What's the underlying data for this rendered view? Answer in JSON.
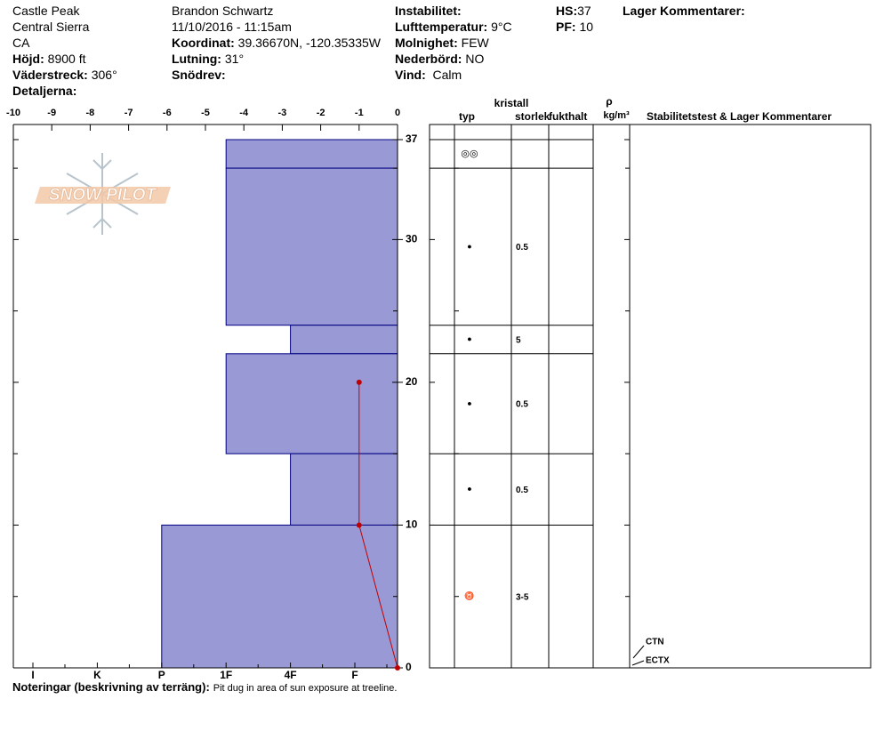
{
  "header": {
    "location": [
      "Castle Peak",
      "Central Sierra",
      "CA"
    ],
    "elevation": {
      "label": "Höjd:",
      "value": "8900 ft"
    },
    "aspect": {
      "label": "Väderstreck:",
      "value": "306°"
    },
    "details": {
      "label": "Detaljerna:"
    },
    "observer": "Brandon Schwartz",
    "datetime": "11/10/2016 - 11:15am",
    "coordinates": {
      "label": "Koordinat:",
      "value": "39.36670N, -120.35335W"
    },
    "slope": {
      "label": "Lutning:",
      "value": "31°"
    },
    "blowing_snow": {
      "label": "Snödrev:"
    },
    "instability": {
      "label": "Instabilitet:"
    },
    "air_temperature": {
      "label": "Lufttemperatur:",
      "value": "9°C"
    },
    "sky": {
      "label": "Molnighet:",
      "value": "FEW"
    },
    "precipitation": {
      "label": "Nederbörd:",
      "value": "NO"
    },
    "wind": {
      "label": "Vind:",
      "value": "Calm"
    },
    "hs": {
      "label": "HS:",
      "value": 37
    },
    "pf": {
      "label": "PF:",
      "value": 10
    },
    "layer_comments": {
      "label": "Lager Kommentarer:"
    }
  },
  "logo": "SNOW PILOT",
  "profile": {
    "temperature_axis": {
      "lim": [
        -10,
        0
      ],
      "ticks": [
        -10,
        -9,
        -8,
        -7,
        -6,
        -5,
        -4,
        -3,
        -2,
        -1,
        0
      ]
    },
    "height_axis": {
      "lim": [
        0,
        37
      ],
      "ticks": [
        0,
        10,
        20,
        30,
        37
      ],
      "minor_ticks": [
        5,
        15,
        25,
        35
      ]
    },
    "hardness_axis": {
      "categories": [
        "I",
        "K",
        "P",
        "1F",
        "4F",
        "F"
      ]
    },
    "layer_color": "#9999d6",
    "layer_edge": "#000080",
    "layers": [
      {
        "top": 37,
        "bottom": 35,
        "hardness": "1F",
        "grain": "◎◎"
      },
      {
        "top": 35,
        "bottom": 24,
        "hardness": "1F",
        "grain": "●",
        "size": 0.5
      },
      {
        "top": 24,
        "bottom": 22,
        "hardness": "4F",
        "grain": "●",
        "size": 5
      },
      {
        "top": 22,
        "bottom": 15,
        "hardness": "1F",
        "grain": "●",
        "size": 0.5
      },
      {
        "top": 15,
        "bottom": 10,
        "hardness": "4F",
        "grain": "●",
        "size": 0.5
      },
      {
        "top": 10,
        "bottom": 0,
        "hardness": "P",
        "grain": "♉",
        "size": "3-5"
      }
    ],
    "temperatures": {
      "color": "#c00000",
      "height": [
        20,
        10,
        0
      ],
      "value": [
        -1,
        -1,
        0
      ]
    }
  },
  "table": {
    "headers": {
      "crystal": "kristall",
      "type": "typ",
      "size": "storlek",
      "moisture": "fukthalt",
      "density_symbol": "ρ",
      "density_unit": "kg/m³",
      "comments": "Stabilitetstest & Lager Kommentarer"
    },
    "tests": [
      "CTN",
      "ECTX"
    ]
  },
  "notes": {
    "label": "Noteringar (beskrivning av terräng):",
    "text": "Pit dug in area of sun exposure at treeline."
  }
}
